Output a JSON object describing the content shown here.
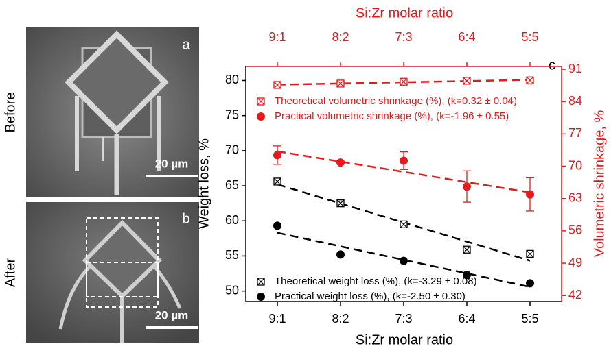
{
  "panels": [
    {
      "label": "a",
      "caption": "Before",
      "scale": "20 µm"
    },
    {
      "label": "b",
      "caption": "After",
      "scale": "20 µm"
    }
  ],
  "chart_data": {
    "type": "scatter",
    "panel_label": "c",
    "xlabel": "Si:Zr molar ratio",
    "x2label": "Si:Zr molar ratio",
    "ylabel": "Weight loss, %",
    "y2label": "Volumetric shrinkage, %",
    "categories": [
      "9:1",
      "8:2",
      "7:3",
      "6:4",
      "5:5"
    ],
    "ylim": [
      48.5,
      82
    ],
    "yticks": [
      50,
      55,
      60,
      65,
      70,
      75,
      80
    ],
    "y2lim": [
      40.7,
      91.6
    ],
    "y2ticks": [
      42,
      49,
      56,
      63,
      70,
      77,
      84,
      91
    ],
    "axis_color": "#000000",
    "axis2_color": "#e41a1c",
    "series": [
      {
        "name": "Theoretical volumetric shrinkage (%), (k=0.32 ± 0.04)",
        "axis": "y2",
        "marker": "square-x",
        "color": "#e41a1c",
        "values": [
          87.6,
          87.9,
          88.3,
          88.5,
          88.6
        ]
      },
      {
        "name": "Practical volumetric shrinkage (%), (k=-1.96 ± 0.55)",
        "axis": "y2",
        "marker": "circle",
        "color": "#e41a1c",
        "values": [
          72.4,
          70.8,
          71.2,
          65.6,
          63.9
        ],
        "errors": [
          2.0,
          null,
          1.9,
          3.4,
          3.6
        ]
      },
      {
        "name": "Theoretical weight loss (%), (k=-3.29 ± 0.08)",
        "axis": "y",
        "marker": "square-x",
        "color": "#000000",
        "values": [
          65.6,
          62.5,
          59.5,
          55.9,
          55.3
        ]
      },
      {
        "name": "Practical weight loss (%), (k=-2.50 ± 0.30)",
        "axis": "y",
        "marker": "circle",
        "color": "#000000",
        "values": [
          59.3,
          55.2,
          54.3,
          52.3,
          51.1
        ]
      }
    ]
  }
}
